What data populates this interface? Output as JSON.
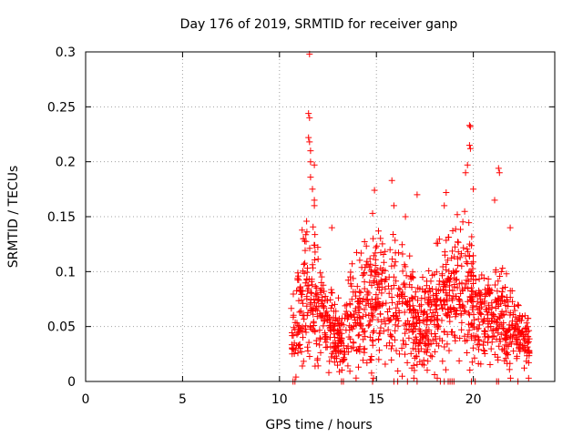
{
  "chart_data": {
    "type": "scatter",
    "title": "Day 176 of 2019, SRMTID for receiver ganp",
    "xlabel": "GPS time / hours",
    "ylabel": "SRMTID / TECUs",
    "xlim": [
      0,
      24.2
    ],
    "ylim": [
      0,
      0.3
    ],
    "xticks": [
      0,
      5,
      10,
      15,
      20
    ],
    "xtick_labels": [
      "0",
      "5",
      "10",
      "15",
      "20"
    ],
    "yticks": [
      0,
      0.05,
      0.1,
      0.15,
      0.2,
      0.25,
      0.3
    ],
    "ytick_labels": [
      "0",
      "0.05",
      "0.1",
      "0.15",
      "0.2",
      "0.25",
      "0.3"
    ],
    "grid": true,
    "marker": "plus",
    "series": [
      {
        "name": "SRMTID",
        "color": "#ff0000",
        "x_range": [
          10.6,
          22.9
        ],
        "activity_profile": [
          [
            10.6,
            0.045
          ],
          [
            11.0,
            0.06
          ],
          [
            11.4,
            0.08
          ],
          [
            11.8,
            0.075
          ],
          [
            12.3,
            0.055
          ],
          [
            12.8,
            0.045
          ],
          [
            13.3,
            0.04
          ],
          [
            13.8,
            0.06
          ],
          [
            14.3,
            0.065
          ],
          [
            14.8,
            0.07
          ],
          [
            15.3,
            0.075
          ],
          [
            15.8,
            0.08
          ],
          [
            16.3,
            0.07
          ],
          [
            16.8,
            0.06
          ],
          [
            17.3,
            0.05
          ],
          [
            17.8,
            0.06
          ],
          [
            18.3,
            0.07
          ],
          [
            18.8,
            0.075
          ],
          [
            19.3,
            0.085
          ],
          [
            19.8,
            0.08
          ],
          [
            20.3,
            0.05
          ],
          [
            20.8,
            0.055
          ],
          [
            21.3,
            0.06
          ],
          [
            21.8,
            0.05
          ],
          [
            22.3,
            0.04
          ],
          [
            22.9,
            0.03
          ]
        ],
        "notable_points": [
          [
            11.55,
            0.298
          ],
          [
            11.5,
            0.244
          ],
          [
            11.55,
            0.24
          ],
          [
            11.5,
            0.222
          ],
          [
            11.55,
            0.218
          ],
          [
            11.6,
            0.21
          ],
          [
            11.6,
            0.2
          ],
          [
            11.8,
            0.197
          ],
          [
            11.6,
            0.186
          ],
          [
            11.7,
            0.175
          ],
          [
            11.8,
            0.165
          ],
          [
            11.8,
            0.16
          ],
          [
            12.7,
            0.14
          ],
          [
            14.9,
            0.174
          ],
          [
            14.8,
            0.153
          ],
          [
            15.8,
            0.183
          ],
          [
            15.9,
            0.16
          ],
          [
            16.5,
            0.15
          ],
          [
            17.1,
            0.17
          ],
          [
            18.5,
            0.16
          ],
          [
            18.6,
            0.172
          ],
          [
            19.8,
            0.233
          ],
          [
            19.85,
            0.232
          ],
          [
            19.8,
            0.215
          ],
          [
            19.85,
            0.212
          ],
          [
            19.7,
            0.197
          ],
          [
            19.6,
            0.19
          ],
          [
            20.0,
            0.175
          ],
          [
            21.1,
            0.165
          ],
          [
            21.3,
            0.194
          ],
          [
            21.35,
            0.19
          ],
          [
            21.9,
            0.14
          ],
          [
            22.4,
            0.06
          ],
          [
            22.8,
            0.05
          ]
        ],
        "zero_points": [
          10.7,
          10.8,
          13.2,
          13.3,
          14.8,
          15.9,
          16.1,
          16.6,
          17.1,
          18.3,
          18.5,
          18.7,
          18.8,
          18.9,
          19.0,
          19.9,
          20.1,
          21.2,
          21.3,
          22.3
        ]
      }
    ]
  }
}
